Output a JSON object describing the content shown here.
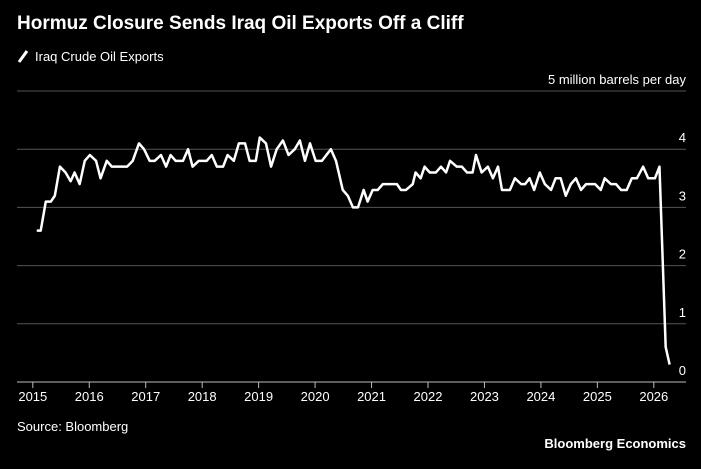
{
  "chart_data": {
    "type": "line",
    "title": "Hormuz Closure Sends Iraq Oil Exports Off a Cliff",
    "source": "Source: Bloomberg",
    "brand": "Bloomberg Economics",
    "series": [
      {
        "name": "Iraq Crude Oil Exports",
        "color": "#ffffff",
        "x": [
          2015.07,
          2015.14,
          2015.23,
          2015.32,
          2015.39,
          2015.48,
          2015.58,
          2015.67,
          2015.74,
          2015.83,
          2015.92,
          2016.01,
          2016.12,
          2016.2,
          2016.31,
          2016.4,
          2016.67,
          2016.77,
          2016.88,
          2016.97,
          2017.07,
          2017.16,
          2017.27,
          2017.36,
          2017.44,
          2017.53,
          2017.66,
          2017.75,
          2017.83,
          2017.94,
          2018.08,
          2018.17,
          2018.26,
          2018.37,
          2018.45,
          2018.56,
          2018.65,
          2018.76,
          2018.84,
          2018.95,
          2019.02,
          2019.13,
          2019.22,
          2019.32,
          2019.43,
          2019.53,
          2019.64,
          2019.73,
          2019.82,
          2019.91,
          2020.01,
          2020.12,
          2020.28,
          2020.37,
          2020.49,
          2020.58,
          2020.67,
          2020.76,
          2020.86,
          2020.93,
          2021.02,
          2021.11,
          2021.2,
          2021.45,
          2021.52,
          2021.61,
          2021.73,
          2021.78,
          2021.87,
          2021.94,
          2022.03,
          2022.14,
          2022.23,
          2022.32,
          2022.39,
          2022.51,
          2022.6,
          2022.69,
          2022.79,
          2022.85,
          2022.95,
          2023.06,
          2023.15,
          2023.24,
          2023.31,
          2023.45,
          2023.54,
          2023.65,
          2023.72,
          2023.8,
          2023.88,
          2023.98,
          2024.07,
          2024.18,
          2024.26,
          2024.35,
          2024.44,
          2024.53,
          2024.62,
          2024.71,
          2024.8,
          2024.96,
          2025.06,
          2025.13,
          2025.24,
          2025.33,
          2025.42,
          2025.52,
          2025.61,
          2025.7,
          2025.81,
          2025.9,
          2026.02,
          2026.1,
          2026.21,
          2026.28
        ],
        "values": [
          2.6,
          2.6,
          3.1,
          3.1,
          3.2,
          3.7,
          3.6,
          3.45,
          3.6,
          3.4,
          3.8,
          3.9,
          3.8,
          3.5,
          3.8,
          3.7,
          3.7,
          3.8,
          4.1,
          4.0,
          3.8,
          3.8,
          3.9,
          3.7,
          3.9,
          3.8,
          3.8,
          4.0,
          3.7,
          3.8,
          3.8,
          3.9,
          3.7,
          3.7,
          3.9,
          3.8,
          4.1,
          4.1,
          3.8,
          3.8,
          4.2,
          4.1,
          3.7,
          4.0,
          4.15,
          3.9,
          4.0,
          4.15,
          3.8,
          4.1,
          3.8,
          3.8,
          4.0,
          3.8,
          3.3,
          3.2,
          3.0,
          3.0,
          3.3,
          3.1,
          3.3,
          3.3,
          3.4,
          3.4,
          3.3,
          3.3,
          3.4,
          3.6,
          3.5,
          3.7,
          3.6,
          3.6,
          3.7,
          3.6,
          3.8,
          3.7,
          3.7,
          3.6,
          3.6,
          3.9,
          3.6,
          3.7,
          3.5,
          3.7,
          3.3,
          3.3,
          3.5,
          3.4,
          3.4,
          3.5,
          3.3,
          3.6,
          3.4,
          3.3,
          3.5,
          3.5,
          3.2,
          3.4,
          3.5,
          3.3,
          3.4,
          3.4,
          3.3,
          3.5,
          3.4,
          3.4,
          3.3,
          3.3,
          3.5,
          3.5,
          3.7,
          3.5,
          3.5,
          3.7,
          0.6,
          0.3
        ]
      }
    ],
    "xlim": [
      2014.72,
      2026.57
    ],
    "xticks": [
      2015,
      2016,
      2017,
      2018,
      2019,
      2020,
      2021,
      2022,
      2023,
      2024,
      2025,
      2026
    ],
    "ylim": [
      0,
      5
    ],
    "yticks": [
      0,
      1,
      2,
      3,
      4,
      {
        "value": 5,
        "label": "5 million barrels per day"
      }
    ],
    "grid": true
  }
}
